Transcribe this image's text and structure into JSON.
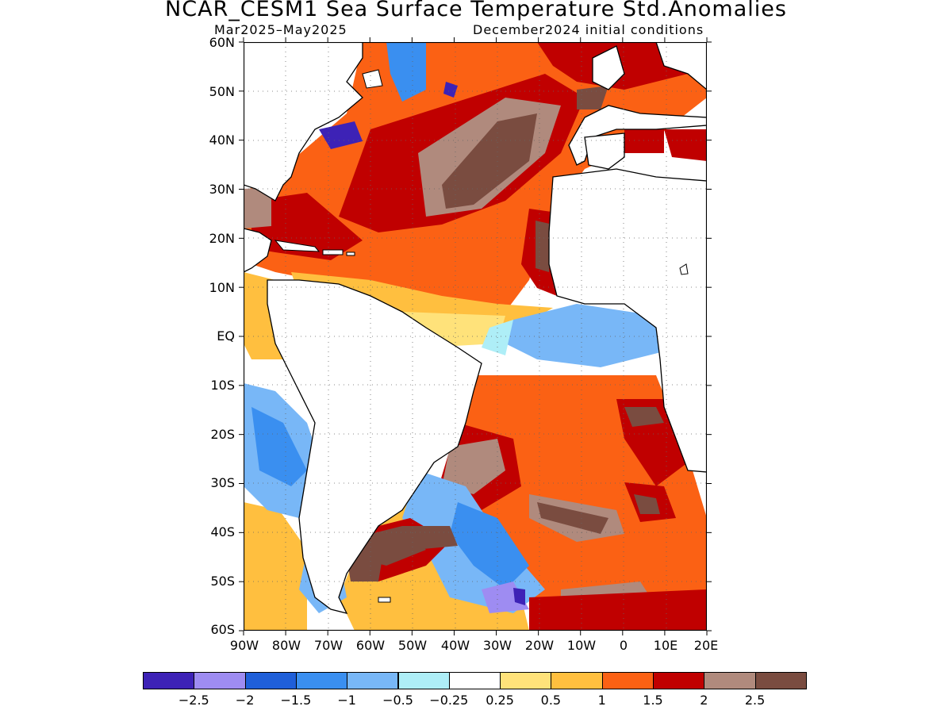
{
  "title": "NCAR_CESM1 Sea Surface Temperature Std.Anomalies",
  "subtitle_left": "Mar2025–May2025",
  "subtitle_right": "December2024 initial conditions",
  "lat_labels": [
    "60N",
    "50N",
    "40N",
    "30N",
    "20N",
    "10N",
    "EQ",
    "10S",
    "20S",
    "30S",
    "40S",
    "50S",
    "60S"
  ],
  "lon_labels": [
    "90W",
    "80W",
    "70W",
    "60W",
    "50W",
    "40W",
    "30W",
    "20W",
    "10W",
    "0",
    "10E",
    "20E"
  ],
  "colorbar": {
    "colors": [
      "#3d22b6",
      "#9e8cf2",
      "#1f5fd9",
      "#3a8ff0",
      "#78b7f7",
      "#aeeef7",
      "#ffffff",
      "#ffe27a",
      "#ffbf3f",
      "#fb6114",
      "#c00000",
      "#b08a7d",
      "#7a4c40"
    ],
    "labels": [
      "−2.5",
      "−2",
      "−1.5",
      "−1",
      "−0.5",
      "−0.25",
      "0.25",
      "0.5",
      "1",
      "1.5",
      "2",
      "2.5"
    ]
  },
  "map_data": {
    "region": "Atlantic Ocean",
    "lon_range": [
      -90,
      20
    ],
    "lat_range": [
      -60,
      60
    ],
    "variable": "SST standardized anomaly",
    "land_color": "#ffffff",
    "features": [
      {
        "name": "NE Atlantic/Europe coast",
        "lon": [
          -20,
          20
        ],
        "lat": [
          40,
          60
        ],
        "level": "2 to 2.5"
      },
      {
        "name": "N Atlantic subtropical",
        "lon": [
          -55,
          -20
        ],
        "lat": [
          28,
          47
        ],
        "level": "2.5"
      },
      {
        "name": "Caribbean",
        "lon": [
          -85,
          -60
        ],
        "lat": [
          15,
          25
        ],
        "level": "2"
      },
      {
        "name": "Gulf of Maine",
        "lon": [
          -70,
          -60
        ],
        "lat": [
          38,
          45
        ],
        "level": "-2"
      },
      {
        "name": "Equatorial E Atlantic",
        "lon": [
          -25,
          10
        ],
        "lat": [
          -5,
          5
        ],
        "level": "-0.5"
      },
      {
        "name": "SE Pacific",
        "lon": [
          -90,
          -75
        ],
        "lat": [
          -30,
          -10
        ],
        "level": "-0.5 to -1"
      },
      {
        "name": "S Atlantic subtropical",
        "lon": [
          -40,
          20
        ],
        "lat": [
          -45,
          -10
        ],
        "level": "1.5 to 2.5"
      },
      {
        "name": "SW Atlantic",
        "lon": [
          -50,
          -20
        ],
        "lat": [
          -55,
          -30
        ],
        "level": "-0.5 to -2"
      }
    ]
  }
}
